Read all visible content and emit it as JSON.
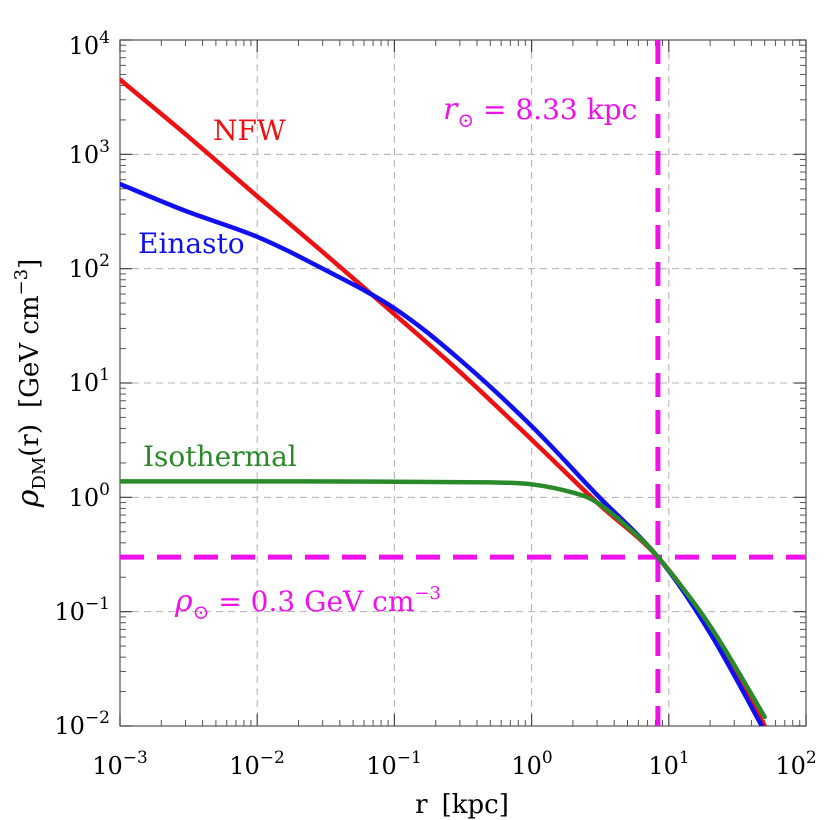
{
  "chart_data": {
    "type": "line",
    "xscale": "log",
    "yscale": "log",
    "xlim": [
      0.001,
      100
    ],
    "ylim": [
      0.01,
      10000
    ],
    "grid": true,
    "xlabel": {
      "main": "r",
      "unit": "[kpc]"
    },
    "ylabel": {
      "symbol": "ρ",
      "sub": "DM",
      "arg": "(r)",
      "unit_main": "[GeV cm",
      "unit_exp": "−3",
      "unit_close": "]"
    },
    "x_ticks": [
      {
        "base": "10",
        "exp": "−3",
        "value": 0.001
      },
      {
        "base": "10",
        "exp": "−2",
        "value": 0.01
      },
      {
        "base": "10",
        "exp": "−1",
        "value": 0.1
      },
      {
        "base": "10",
        "exp": "0",
        "value": 1
      },
      {
        "base": "10",
        "exp": "1",
        "value": 10
      },
      {
        "base": "10",
        "exp": "2",
        "value": 100
      }
    ],
    "y_ticks": [
      {
        "base": "10",
        "exp": "−2",
        "value": 0.01
      },
      {
        "base": "10",
        "exp": "−1",
        "value": 0.1
      },
      {
        "base": "10",
        "exp": "0",
        "value": 1
      },
      {
        "base": "10",
        "exp": "1",
        "value": 10
      },
      {
        "base": "10",
        "exp": "2",
        "value": 100
      },
      {
        "base": "10",
        "exp": "3",
        "value": 1000
      },
      {
        "base": "10",
        "exp": "4",
        "value": 10000
      }
    ],
    "series": [
      {
        "name": "NFW",
        "color": "#ee1111",
        "x": [
          0.001,
          0.003,
          0.01,
          0.03,
          0.1,
          0.3,
          1,
          3,
          8.33,
          20,
          50
        ],
        "values": [
          4500,
          1500,
          430,
          140,
          40,
          12.5,
          3.2,
          0.9,
          0.3,
          0.07,
          0.01
        ]
      },
      {
        "name": "Einasto",
        "color": "#1010ee",
        "x": [
          0.001,
          0.003,
          0.01,
          0.03,
          0.1,
          0.3,
          1,
          3,
          8.33,
          20,
          50
        ],
        "values": [
          550,
          320,
          190,
          100,
          45,
          16,
          4.2,
          1.05,
          0.3,
          0.065,
          0.009
        ]
      },
      {
        "name": "Isothermal",
        "color": "#2a8a2a",
        "x": [
          0.001,
          0.01,
          0.1,
          0.5,
          1,
          2,
          3,
          5,
          8.33,
          20,
          50
        ],
        "values": [
          1.38,
          1.38,
          1.37,
          1.35,
          1.3,
          1.1,
          0.9,
          0.55,
          0.3,
          0.075,
          0.012
        ]
      }
    ],
    "reference_lines": [
      {
        "orientation": "vertical",
        "value": 8.33,
        "color": "#ee11ee",
        "symbol": "r",
        "sub": "⊙",
        "text": " = 8.33 kpc"
      },
      {
        "orientation": "horizontal",
        "value": 0.3,
        "color": "#ee11ee",
        "symbol": "ρ",
        "sub": "⊙",
        "text": " = 0.3 GeV cm",
        "exp": "−3"
      }
    ]
  }
}
